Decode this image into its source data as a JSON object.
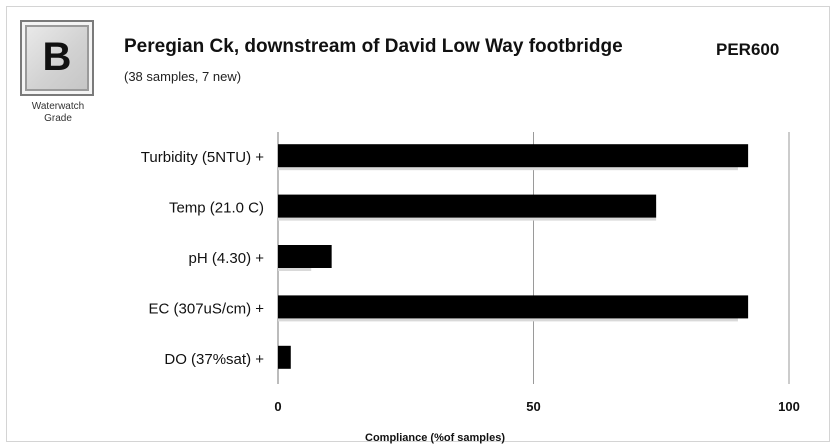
{
  "header": {
    "grade": "B",
    "grade_caption_line1": "Waterwatch",
    "grade_caption_line2": "Grade",
    "title": "Peregian Ck, downstream of David Low Way footbridge",
    "site_code": "PER600",
    "subtitle": "(38 samples, 7 new)"
  },
  "chart_data": {
    "type": "bar",
    "orientation": "horizontal",
    "categories": [
      "Turbidity (5NTU) +",
      "Temp (21.0 C)",
      "pH (4.30) +",
      "EC (307uS/cm) +",
      "DO (37%sat) +"
    ],
    "series": [
      {
        "values": [
          92,
          74,
          10.5,
          92,
          2.5
        ],
        "color": "#000000"
      },
      {
        "values": [
          90,
          74,
          6.5,
          90,
          0
        ],
        "color": "#d9d9d9"
      }
    ],
    "xlabel": "Compliance  (%of samples)",
    "xlim": [
      0,
      100
    ],
    "xticks": [
      0,
      50,
      100
    ],
    "xtick_labels": [
      "0",
      "50",
      "100"
    ],
    "grid": "vertical gridline at 50"
  }
}
